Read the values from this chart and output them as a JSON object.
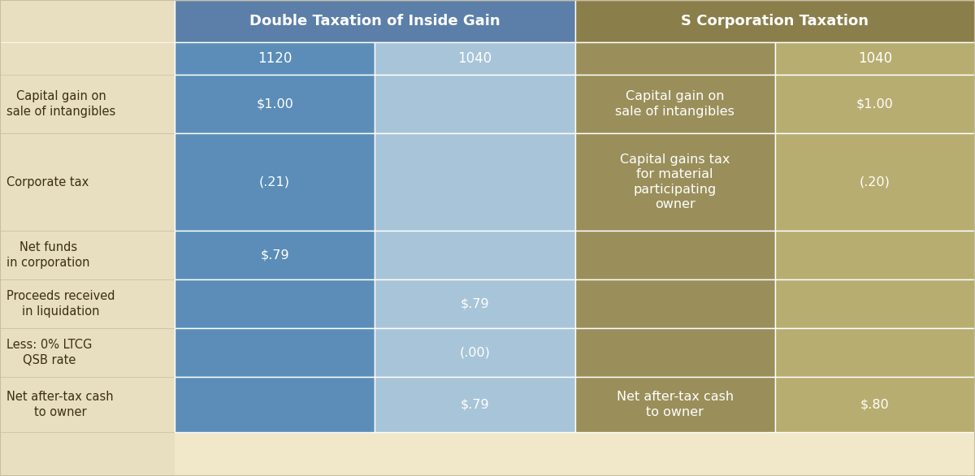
{
  "title_left": "Double Taxation of Inside Gain",
  "title_right": "S Corporation Taxation",
  "col_headers": [
    "1120",
    "1040",
    "",
    "1040"
  ],
  "row_labels": [
    "Capital gain on\nsale of intangibles",
    "Corporate tax",
    "Net funds\nin corporation",
    "Proceeds received\nin liquidation",
    "Less: 0% LTCG\nQSB rate",
    "Net after-tax cash\nto owner"
  ],
  "cells": [
    [
      "$1.00",
      "",
      "Capital gain on\nsale of intangibles",
      "$1.00"
    ],
    [
      "(.21)",
      "",
      "Capital gains tax\nfor material\nparticipating\nowner",
      "(.20)"
    ],
    [
      "$.79",
      "",
      "",
      ""
    ],
    [
      "",
      "$.79",
      "",
      ""
    ],
    [
      "",
      "(.00)",
      "",
      ""
    ],
    [
      "",
      "$.79",
      "Net after-tax cash\nto owner",
      "$.80"
    ]
  ],
  "colors": {
    "dark_blue": "#5b8db8",
    "light_blue": "#a8c4d8",
    "dark_gold": "#9a8f5a",
    "light_gold": "#c4ba7d",
    "header_bg_blue": "#4a7fa5",
    "header_bg_gold": "#8a7e4a",
    "row_label_bg": "#e8dfc0",
    "white_text": "#ffffff",
    "dark_text": "#4a3f1a",
    "border": "#d0c8a0"
  },
  "fig_width": 12.0,
  "fig_height": 5.86
}
